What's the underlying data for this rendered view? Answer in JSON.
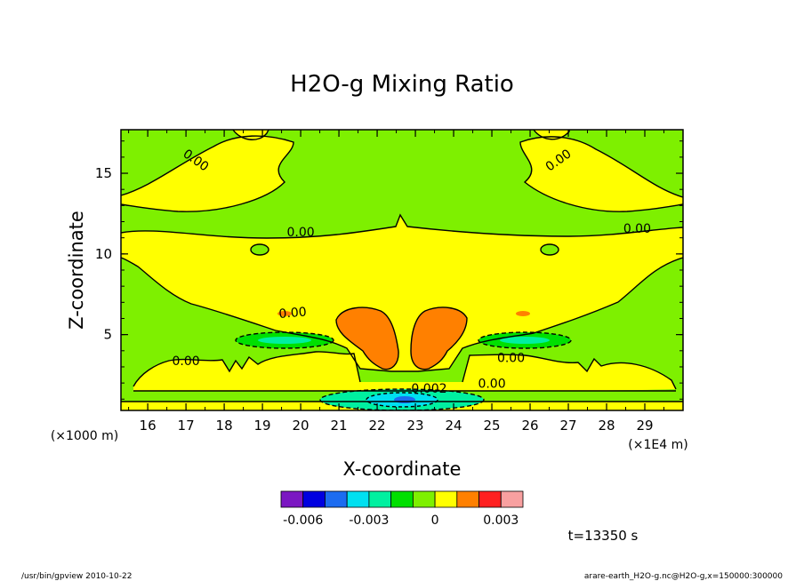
{
  "chart_data": {
    "type": "filled-contour",
    "title": "H2O-g Mixing Ratio",
    "xlabel": "X-coordinate",
    "ylabel": "Z-coordinate",
    "x_unit_label": "(×1E4 m)",
    "y_unit_label": "(×1000 m)",
    "xlim": [
      15.3,
      30.0
    ],
    "ylim": [
      0.3,
      17.7
    ],
    "x_ticks": [
      "16",
      "17",
      "18",
      "19",
      "20",
      "21",
      "22",
      "23",
      "24",
      "25",
      "26",
      "27",
      "28",
      "29"
    ],
    "y_ticks": [
      "5",
      "10",
      "15"
    ],
    "time_label": "t=13350 s",
    "contour_labels": [
      {
        "text": "0.00",
        "x": 17.2,
        "y": 15.6,
        "rot": 35
      },
      {
        "text": "0.00",
        "x": 20.0,
        "y": 11.1,
        "rot": 0
      },
      {
        "text": "0.00",
        "x": 26.8,
        "y": 15.6,
        "rot": -35
      },
      {
        "text": "0.00",
        "x": 28.8,
        "y": 11.3,
        "rot": 0
      },
      {
        "text": "0.00",
        "x": 19.8,
        "y": 6.1,
        "rot": -5
      },
      {
        "text": "0.00",
        "x": 17.0,
        "y": 3.1,
        "rot": 0
      },
      {
        "text": "0.00",
        "x": 25.5,
        "y": 3.3,
        "rot": 0
      },
      {
        "text": "-0.002",
        "x": 23.3,
        "y": 1.4,
        "rot": 0
      },
      {
        "text": "0.00",
        "x": 25.0,
        "y": 1.7,
        "rot": 0
      }
    ],
    "colorbar": {
      "colors": [
        "#7b17c2",
        "#0000e0",
        "#1c6cf0",
        "#00e0f0",
        "#00f0a0",
        "#00e000",
        "#7ef000",
        "#ffff00",
        "#ff8000",
        "#ff2020",
        "#f8a0a0"
      ],
      "tick_labels": [
        "-0.006",
        "-0.003",
        "0",
        "0.003"
      ],
      "tick_boundary_index": [
        1,
        4,
        7,
        10
      ]
    },
    "level_colors": {
      "neg_light": "#00f0a0",
      "neg_mid": "#00e000",
      "neg_cyan": "#00e0f0",
      "neg_blue": "#1c6cf0",
      "background": "#7ef000",
      "positive_small": "#ffff00",
      "positive_mid": "#ff8000"
    }
  },
  "footer": {
    "left": "/usr/bin/gpview  2010-10-22",
    "right": "arare-earth_H2O-g.nc@H2O-g,x=150000:300000"
  }
}
